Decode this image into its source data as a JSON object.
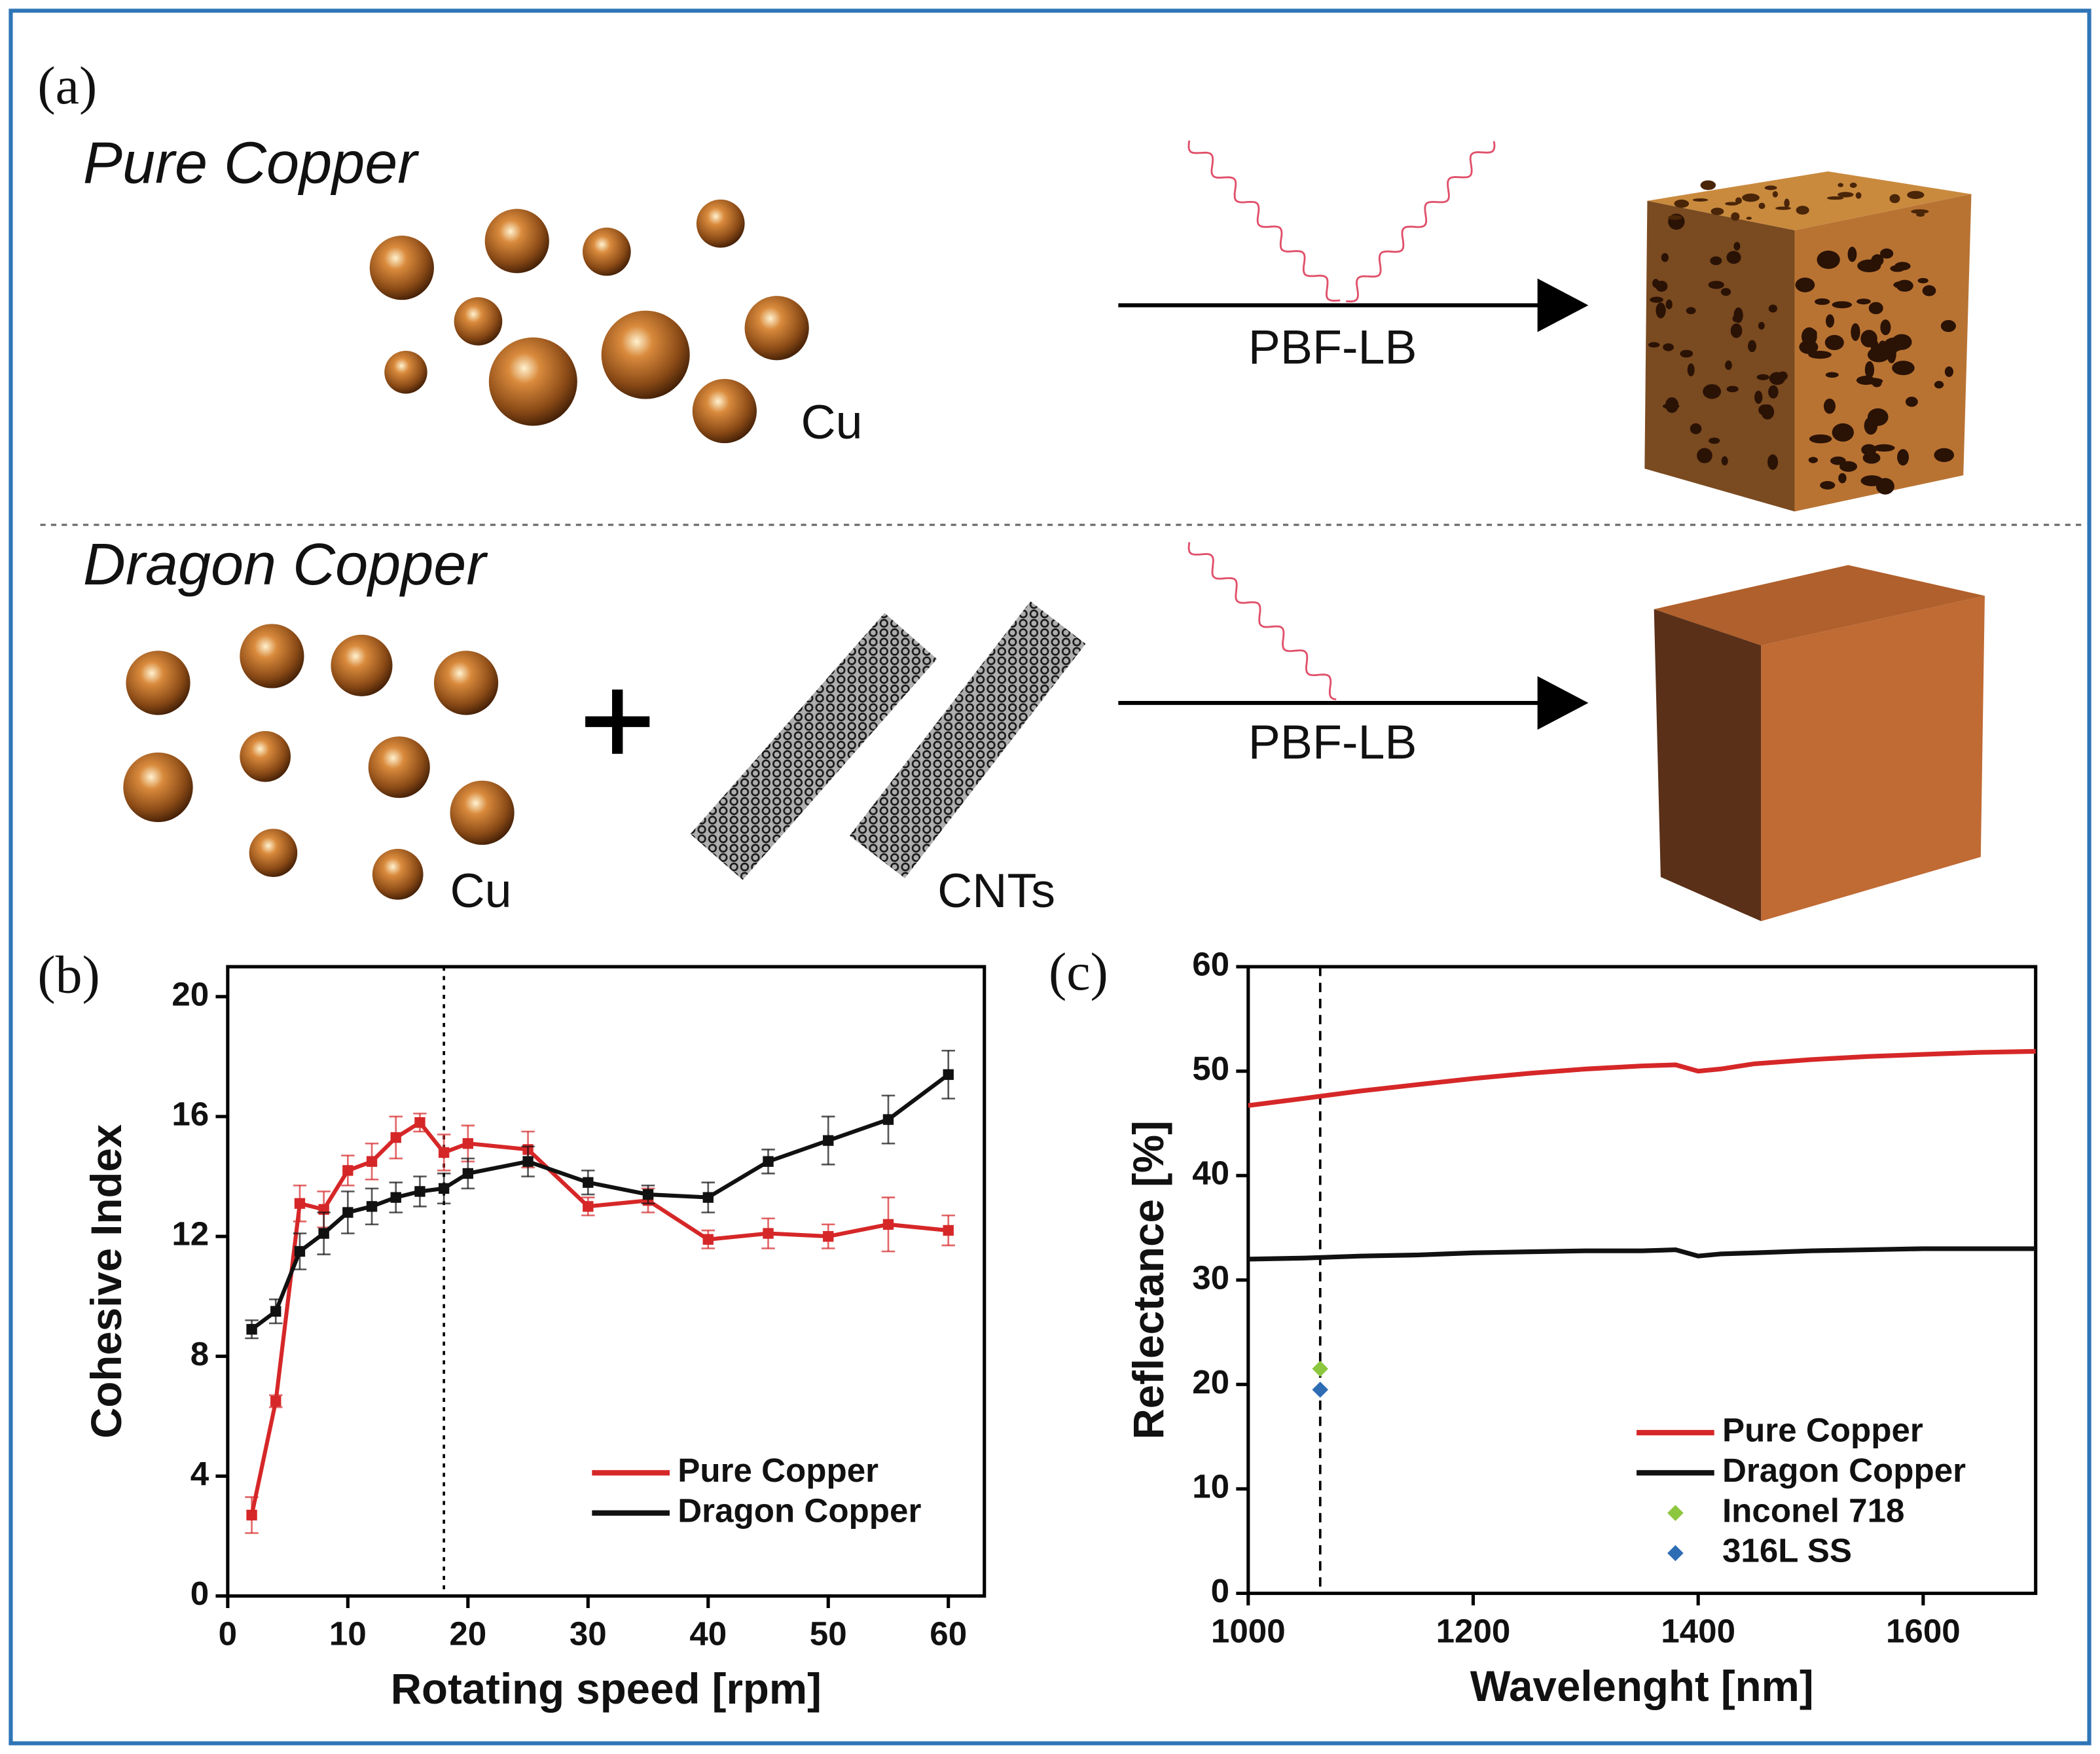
{
  "panel_labels": [
    "(a)",
    "(b)",
    "(c)"
  ],
  "diagram": {
    "rows": [
      {
        "title": "Pure Copper",
        "process": "PBF-LB",
        "powder": "Cu"
      },
      {
        "title": "Dragon Copper",
        "process": "PBF-LB",
        "powder": "Cu",
        "additive": "CNTs"
      }
    ]
  },
  "chart_data": [
    {
      "type": "line",
      "x_label": "Rotating speed [rpm]",
      "y_label": "Cohesive Index",
      "x": [
        2,
        4,
        6,
        8,
        10,
        12,
        14,
        16,
        18,
        20,
        25,
        30,
        35,
        40,
        45,
        50,
        55,
        60
      ],
      "series": [
        {
          "name": "Pure Copper",
          "color": "#d62728",
          "values": [
            2.7,
            6.5,
            13.1,
            12.9,
            14.2,
            14.5,
            15.3,
            15.8,
            14.8,
            15.1,
            14.9,
            13.0,
            13.2,
            11.9,
            12.1,
            12.0,
            12.4,
            12.2
          ],
          "errors": [
            0.6,
            0.2,
            0.6,
            0.6,
            0.5,
            0.6,
            0.7,
            0.3,
            0.6,
            0.6,
            0.6,
            0.3,
            0.4,
            0.3,
            0.5,
            0.4,
            0.9,
            0.5
          ]
        },
        {
          "name": "Dragon Copper",
          "color": "#111111",
          "values": [
            8.9,
            9.5,
            11.5,
            12.1,
            12.8,
            13.0,
            13.3,
            13.5,
            13.6,
            14.1,
            14.5,
            13.8,
            13.4,
            13.3,
            14.5,
            15.2,
            15.9,
            17.4
          ],
          "errors": [
            0.3,
            0.4,
            0.6,
            0.7,
            0.7,
            0.6,
            0.5,
            0.5,
            0.5,
            0.5,
            0.5,
            0.4,
            0.3,
            0.5,
            0.4,
            0.8,
            0.8,
            0.8
          ]
        }
      ],
      "xlim": [
        0,
        63
      ],
      "xticks": [
        0,
        10,
        20,
        30,
        40,
        50,
        60
      ],
      "ylim": [
        0,
        21
      ],
      "yticks": [
        0,
        4,
        8,
        12,
        16,
        20
      ],
      "vline": 18,
      "legend": "lower right"
    },
    {
      "type": "line",
      "x_label": "Wavelenght [nm]",
      "y_label": "Reflectance [%]",
      "x": [
        1000,
        1050,
        1100,
        1150,
        1200,
        1250,
        1300,
        1350,
        1380,
        1400,
        1420,
        1450,
        1500,
        1550,
        1600,
        1650,
        1700
      ],
      "series": [
        {
          "name": "Pure Copper",
          "color": "#d62728",
          "values": [
            46.7,
            47.4,
            48.1,
            48.7,
            49.3,
            49.8,
            50.2,
            50.5,
            50.6,
            50.0,
            50.2,
            50.7,
            51.1,
            51.4,
            51.6,
            51.8,
            51.9
          ]
        },
        {
          "name": "Dragon Copper",
          "color": "#111111",
          "values": [
            32.0,
            32.1,
            32.3,
            32.4,
            32.6,
            32.7,
            32.8,
            32.8,
            32.9,
            32.3,
            32.5,
            32.6,
            32.8,
            32.9,
            33.0,
            33.0,
            33.0
          ]
        }
      ],
      "points": [
        {
          "name": "Inconel 718",
          "color": "#8dc63f",
          "x": 1064,
          "y": 21.5
        },
        {
          "name": "316L SS",
          "color": "#2e6db4",
          "x": 1064,
          "y": 19.5
        }
      ],
      "xlim": [
        1000,
        1700
      ],
      "xticks": [
        1000,
        1200,
        1400,
        1600
      ],
      "ylim": [
        0,
        60
      ],
      "yticks": [
        0,
        10,
        20,
        30,
        40,
        50,
        60
      ],
      "vline": 1064,
      "legend": "lower right"
    }
  ]
}
